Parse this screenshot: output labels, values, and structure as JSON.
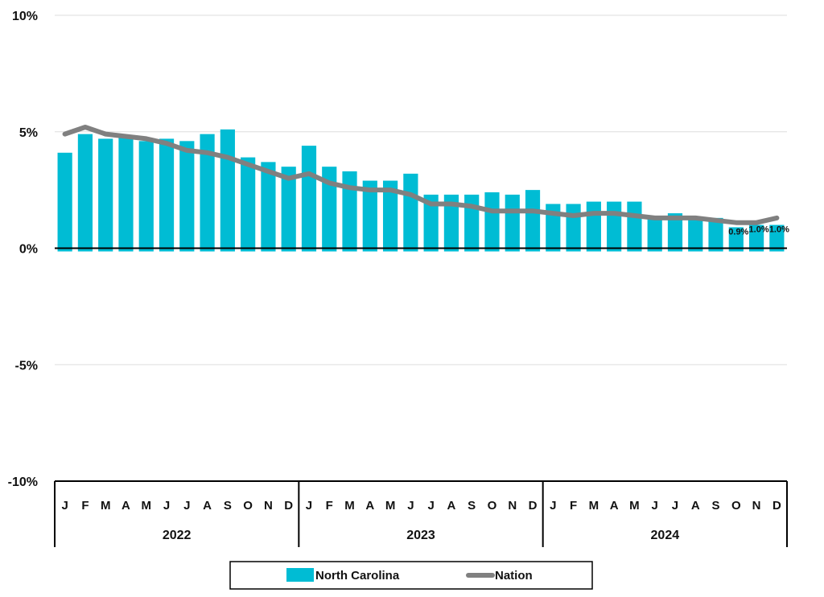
{
  "chart_data": {
    "type": "bar",
    "title": "",
    "xlabel": "",
    "ylabel": "",
    "ylim": [
      -10,
      10
    ],
    "y_ticks": [
      "10%",
      "5%",
      "0%",
      "-5%",
      "-10%"
    ],
    "y_tick_values": [
      10,
      5,
      0,
      -5,
      -10
    ],
    "grid": true,
    "legend_position": "bottom",
    "years": [
      "2022",
      "2023",
      "2024"
    ],
    "months": [
      "J",
      "F",
      "M",
      "A",
      "M",
      "J",
      "J",
      "A",
      "S",
      "O",
      "N",
      "D"
    ],
    "categories": [
      "Jan 2022",
      "Feb 2022",
      "Mar 2022",
      "Apr 2022",
      "May 2022",
      "Jun 2022",
      "Jul 2022",
      "Aug 2022",
      "Sep 2022",
      "Oct 2022",
      "Nov 2022",
      "Dec 2022",
      "Jan 2023",
      "Feb 2023",
      "Mar 2023",
      "Apr 2023",
      "May 2023",
      "Jun 2023",
      "Jul 2023",
      "Aug 2023",
      "Sep 2023",
      "Oct 2023",
      "Nov 2023",
      "Dec 2023",
      "Jan 2024",
      "Feb 2024",
      "Mar 2024",
      "Apr 2024",
      "May 2024",
      "Jun 2024",
      "Jul 2024",
      "Aug 2024",
      "Sep 2024",
      "Oct 2024",
      "Nov 2024",
      "Dec 2024"
    ],
    "series": [
      {
        "name": "North Carolina",
        "kind": "bar",
        "color": "#00BCD4",
        "values": [
          4.1,
          4.9,
          4.7,
          4.8,
          4.6,
          4.7,
          4.6,
          4.9,
          5.1,
          3.9,
          3.7,
          3.5,
          4.4,
          3.5,
          3.3,
          2.9,
          2.9,
          3.2,
          2.3,
          2.3,
          2.3,
          2.4,
          2.3,
          2.5,
          1.9,
          1.9,
          2.0,
          2.0,
          2.0,
          1.3,
          1.5,
          1.3,
          1.3,
          0.9,
          1.0,
          1.0
        ]
      },
      {
        "name": "Nation",
        "kind": "line",
        "color": "#808080",
        "values": [
          4.9,
          5.2,
          4.9,
          4.8,
          4.7,
          4.5,
          4.2,
          4.1,
          3.9,
          3.6,
          3.3,
          3.0,
          3.2,
          2.8,
          2.6,
          2.5,
          2.5,
          2.3,
          1.9,
          1.9,
          1.8,
          1.6,
          1.6,
          1.6,
          1.5,
          1.4,
          1.5,
          1.5,
          1.4,
          1.3,
          1.3,
          1.3,
          1.2,
          1.1,
          1.1,
          1.3
        ]
      }
    ],
    "data_labels": [
      {
        "index": 33,
        "text": "0.9%"
      },
      {
        "index": 34,
        "text": "1.0%"
      },
      {
        "index": 35,
        "text": "1.0%"
      }
    ]
  }
}
